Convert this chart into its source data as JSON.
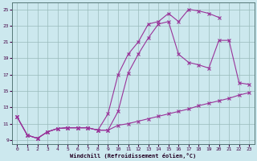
{
  "xlabel": "Windchill (Refroidissement éolien,°C)",
  "bg_color": "#cce8ee",
  "line_color": "#993399",
  "grid_color": "#99bbbb",
  "xlim": [
    -0.5,
    23.5
  ],
  "ylim": [
    8.5,
    25.8
  ],
  "xticks": [
    0,
    1,
    2,
    3,
    4,
    5,
    6,
    7,
    8,
    9,
    10,
    11,
    12,
    13,
    14,
    15,
    16,
    17,
    18,
    19,
    20,
    21,
    22,
    23
  ],
  "yticks": [
    9,
    11,
    13,
    15,
    17,
    19,
    21,
    23,
    25
  ],
  "line_top_x": [
    0,
    1,
    2,
    3,
    4,
    5,
    6,
    7,
    8,
    9,
    10,
    11,
    12,
    13,
    14,
    15,
    16,
    17,
    18,
    19,
    20
  ],
  "line_top_y": [
    11.8,
    9.6,
    9.2,
    10.0,
    10.4,
    10.5,
    10.5,
    10.5,
    10.2,
    12.2,
    17.0,
    19.5,
    21.0,
    23.2,
    23.5,
    24.5,
    23.5,
    25.0,
    24.8,
    24.5,
    24.0
  ],
  "line_mid_x": [
    0,
    1,
    2,
    3,
    4,
    5,
    6,
    7,
    8,
    9,
    10,
    11,
    12,
    13,
    14,
    15,
    16,
    17,
    18,
    19,
    20,
    21,
    22,
    23
  ],
  "line_mid_y": [
    11.8,
    9.6,
    9.2,
    10.0,
    10.4,
    10.5,
    10.5,
    10.5,
    10.2,
    10.2,
    12.5,
    17.2,
    19.5,
    21.5,
    23.2,
    23.5,
    19.5,
    18.5,
    18.2,
    17.8,
    21.2,
    21.2,
    16.0,
    15.8
  ],
  "line_bot_x": [
    0,
    1,
    2,
    3,
    4,
    5,
    6,
    7,
    8,
    9,
    10,
    11,
    12,
    13,
    14,
    15,
    16,
    17,
    18,
    19,
    20,
    21,
    22,
    23
  ],
  "line_bot_y": [
    11.8,
    9.6,
    9.2,
    10.0,
    10.4,
    10.5,
    10.5,
    10.5,
    10.2,
    10.2,
    10.8,
    11.0,
    11.3,
    11.6,
    11.9,
    12.2,
    12.5,
    12.8,
    13.2,
    13.5,
    13.8,
    14.1,
    14.5,
    14.8
  ]
}
